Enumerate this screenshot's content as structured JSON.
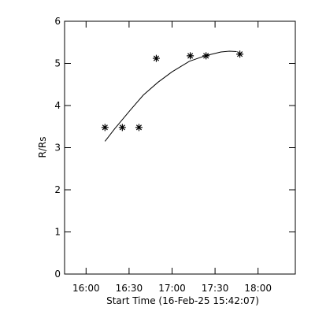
{
  "chart_data": {
    "type": "scatter",
    "x_label": "Start Time (16-Feb-25 15:42:07)",
    "y_label": "R/Rs",
    "xlim": [
      945,
      1106
    ],
    "ylim": [
      0,
      6
    ],
    "xticks": [
      {
        "value": 960,
        "label": "16:00"
      },
      {
        "value": 990,
        "label": "16:30"
      },
      {
        "value": 1020,
        "label": "17:00"
      },
      {
        "value": 1050,
        "label": "17:30"
      },
      {
        "value": 1080,
        "label": "18:00"
      }
    ],
    "yticks": [
      0,
      1,
      2,
      3,
      4,
      5,
      6
    ],
    "series": [
      {
        "type": "scatter",
        "color": "#000000",
        "x": [
          973.2,
          985.3,
          996.9,
          1009,
          1032.7,
          1043.7,
          1067.3
        ],
        "values": [
          3.48,
          3.48,
          3.48,
          5.12,
          5.18,
          5.18,
          5.22
        ]
      },
      {
        "type": "line",
        "color": "#000000",
        "x": [
          973.2,
          980,
          990.8,
          1000,
          1010.1,
          1020,
          1032.1,
          1043,
          1054.1,
          1060,
          1065.1
        ],
        "values": [
          3.15,
          3.45,
          3.89,
          4.25,
          4.55,
          4.8,
          5.05,
          5.18,
          5.27,
          5.29,
          5.28
        ]
      }
    ]
  }
}
